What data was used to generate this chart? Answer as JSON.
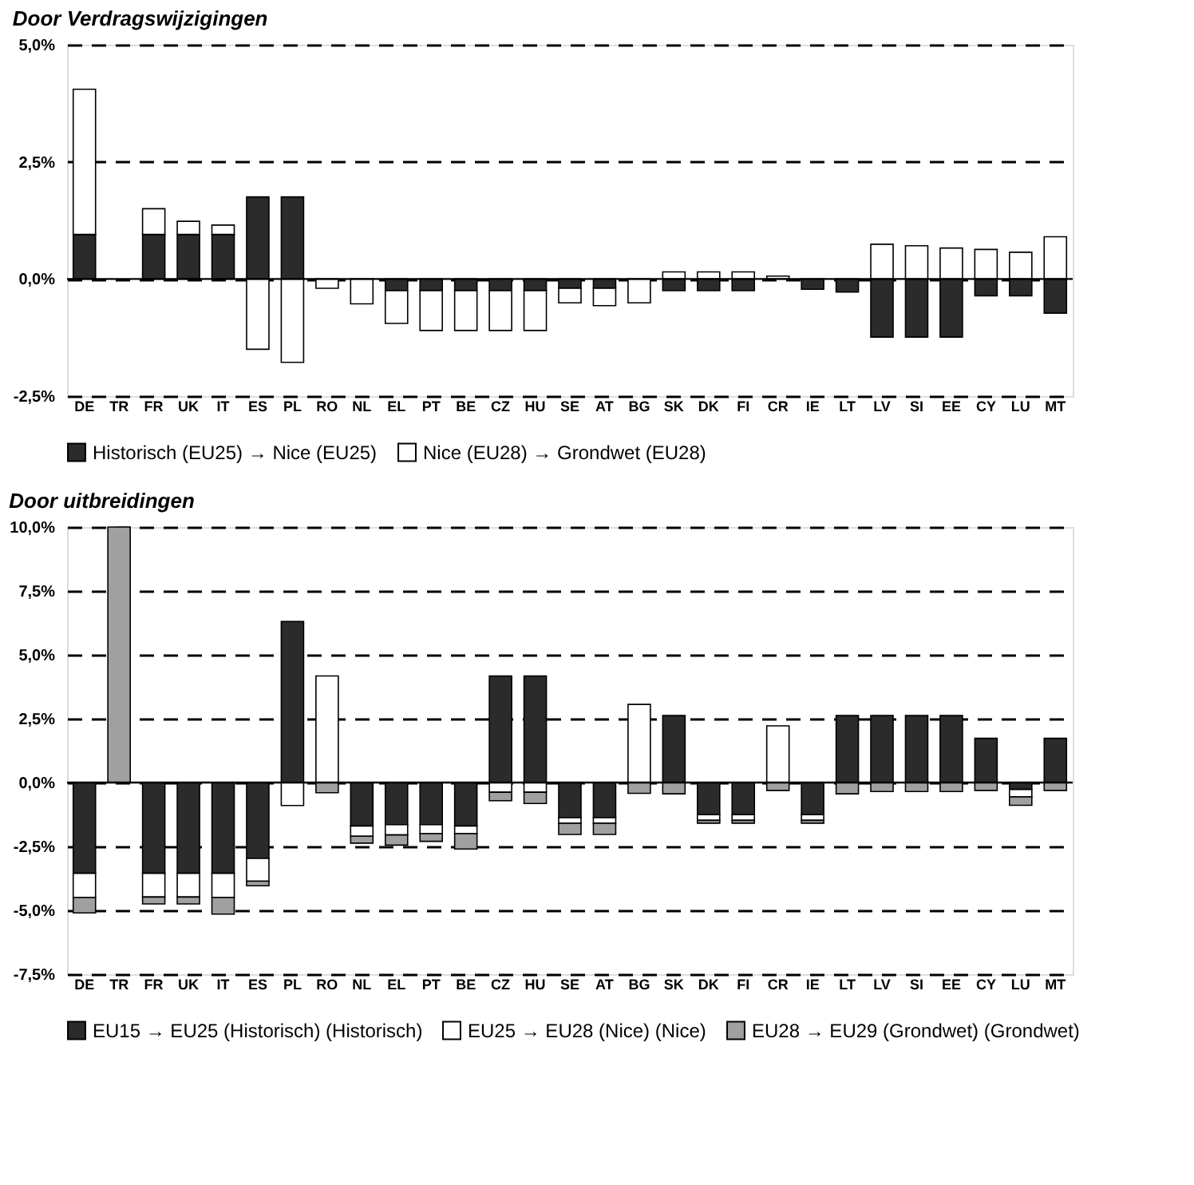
{
  "chart_data": [
    {
      "type": "bar",
      "title": "Door Verdragswijzigingen",
      "stacked": true,
      "grid": "y",
      "legend": "bottom",
      "categories": [
        "DE",
        "TR",
        "FR",
        "UK",
        "IT",
        "ES",
        "PL",
        "RO",
        "NL",
        "EL",
        "PT",
        "BE",
        "CZ",
        "HU",
        "SE",
        "AT",
        "BG",
        "SK",
        "DK",
        "FI",
        "CR",
        "IE",
        "LT",
        "LV",
        "SI",
        "EE",
        "CY",
        "LU",
        "MT"
      ],
      "ylim": [
        -2.5,
        5.0
      ],
      "yticks": [
        {
          "value": -2.5,
          "label": "-2,5%"
        },
        {
          "value": 0,
          "label": "0,0%"
        },
        {
          "value": 2.5,
          "label": "2,5%"
        },
        {
          "value": 5.0,
          "label": "5,0%"
        }
      ],
      "ref_lines": [
        {
          "axis": "y",
          "value": 0,
          "label": null,
          "color": "#000000",
          "line_style": "solid"
        }
      ],
      "series": [
        {
          "name": "Historisch (EU25) → Nice (EU25)",
          "color": "#2b2b2b",
          "values": [
            0.95,
            null,
            0.95,
            0.95,
            0.95,
            1.75,
            1.75,
            null,
            null,
            -0.25,
            -0.25,
            -0.25,
            -0.25,
            -0.25,
            -0.2,
            -0.2,
            null,
            -0.25,
            -0.25,
            -0.25,
            null,
            -0.22,
            -0.28,
            -1.24,
            -1.24,
            -1.24,
            -0.36,
            -0.36,
            -0.73
          ]
        },
        {
          "name": "Nice (EU28) → Grondwet (EU28)",
          "color": "#ffffff",
          "values": [
            3.1,
            null,
            0.55,
            0.28,
            0.2,
            -1.5,
            -1.78,
            -0.2,
            -0.53,
            -0.7,
            -0.85,
            -0.85,
            -0.85,
            -0.85,
            -0.31,
            -0.37,
            -0.51,
            0.15,
            0.15,
            0.15,
            0.06,
            null,
            null,
            0.74,
            0.71,
            0.66,
            0.63,
            0.57,
            0.9
          ]
        }
      ]
    },
    {
      "type": "bar",
      "title": "Door uitbreidingen",
      "stacked": true,
      "grid": "y",
      "legend": "bottom",
      "categories": [
        "DE",
        "TR",
        "FR",
        "UK",
        "IT",
        "ES",
        "PL",
        "RO",
        "NL",
        "EL",
        "PT",
        "BE",
        "CZ",
        "HU",
        "SE",
        "AT",
        "BG",
        "SK",
        "DK",
        "FI",
        "CR",
        "IE",
        "LT",
        "LV",
        "SI",
        "EE",
        "CY",
        "LU",
        "MT"
      ],
      "ylim": [
        -7.5,
        10.0
      ],
      "yticks": [
        {
          "value": -7.5,
          "label": "-7,5%"
        },
        {
          "value": -5.0,
          "label": "-5,0%"
        },
        {
          "value": -2.5,
          "label": "-2,5%"
        },
        {
          "value": 0,
          "label": "0,0%"
        },
        {
          "value": 2.5,
          "label": "2,5%"
        },
        {
          "value": 5.0,
          "label": "5,0%"
        },
        {
          "value": 7.5,
          "label": "7,5%"
        },
        {
          "value": 10.0,
          "label": "10,0%"
        }
      ],
      "ref_lines": [
        {
          "axis": "y",
          "value": 0,
          "label": null,
          "color": "#000000",
          "line_style": "solid"
        }
      ],
      "series": [
        {
          "name": "EU15 → EU25 (Historisch) (Historisch)",
          "color": "#2b2b2b",
          "values": [
            -3.55,
            null,
            -3.55,
            -3.55,
            -3.55,
            -2.97,
            6.3,
            null,
            -1.7,
            -1.65,
            -1.65,
            -1.7,
            4.17,
            4.17,
            -1.37,
            -1.37,
            null,
            2.62,
            -1.26,
            -1.26,
            null,
            -1.26,
            2.62,
            2.62,
            2.62,
            2.62,
            1.73,
            -0.27,
            1.73
          ]
        },
        {
          "name": "EU25 → EU28 (Nice) (Nice)",
          "color": "#ffffff",
          "values": [
            -0.95,
            null,
            -0.93,
            -0.93,
            -0.95,
            -0.89,
            -0.9,
            4.17,
            -0.4,
            -0.4,
            -0.35,
            -0.3,
            -0.38,
            -0.38,
            -0.22,
            -0.22,
            3.06,
            null,
            -0.22,
            -0.22,
            2.22,
            -0.22,
            null,
            null,
            null,
            null,
            null,
            -0.29,
            null
          ]
        },
        {
          "name": "EU28 → EU29 (Grondwet) (Grondwet)",
          "color": "#a0a0a0",
          "values": [
            -0.6,
            10.0,
            -0.27,
            -0.27,
            -0.65,
            -0.18,
            null,
            -0.4,
            -0.27,
            -0.4,
            -0.3,
            -0.6,
            -0.33,
            -0.44,
            -0.44,
            -0.44,
            -0.42,
            -0.44,
            -0.11,
            -0.11,
            -0.31,
            -0.11,
            -0.44,
            -0.35,
            -0.35,
            -0.35,
            -0.31,
            -0.33,
            -0.31
          ]
        }
      ]
    }
  ]
}
